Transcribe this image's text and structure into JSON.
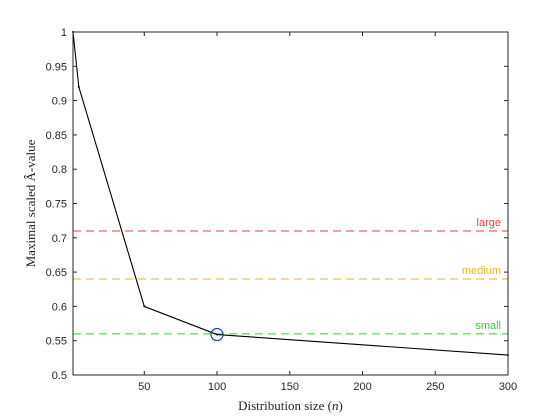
{
  "chart_data": {
    "type": "line",
    "title": "",
    "xlabel": "Distribution size (n)",
    "xlabel_parts": {
      "before": "Distribution size (",
      "var": "n",
      "after": ")"
    },
    "ylabel": "Maximal scaled Â-value",
    "xlim": [
      1,
      300
    ],
    "ylim": [
      0.5,
      1
    ],
    "xticks": [
      50,
      100,
      150,
      200,
      250,
      300
    ],
    "yticks": [
      0.5,
      0.55,
      0.6,
      0.65,
      0.7,
      0.75,
      0.8,
      0.85,
      0.9,
      0.95,
      1
    ],
    "ytick_labels": [
      "0.5",
      "0.55",
      "0.6",
      "0.65",
      "0.7",
      "0.75",
      "0.8",
      "0.85",
      "0.9",
      "0.95",
      "1"
    ],
    "grid": false,
    "series": [
      {
        "x": [
          1,
          5,
          50,
          100,
          300
        ],
        "y": [
          1,
          0.92,
          0.6,
          0.559,
          0.529
        ],
        "color": "#000000"
      }
    ],
    "reference_lines": [
      {
        "label": "large",
        "y": 0.71,
        "color": "#e8413c"
      },
      {
        "label": "medium",
        "y": 0.64,
        "color": "#e6b422"
      },
      {
        "label": "small",
        "y": 0.56,
        "color": "#3cc83c"
      }
    ],
    "highlight": {
      "x": 100,
      "y": 0.559,
      "color": "#1f3fbf"
    }
  }
}
